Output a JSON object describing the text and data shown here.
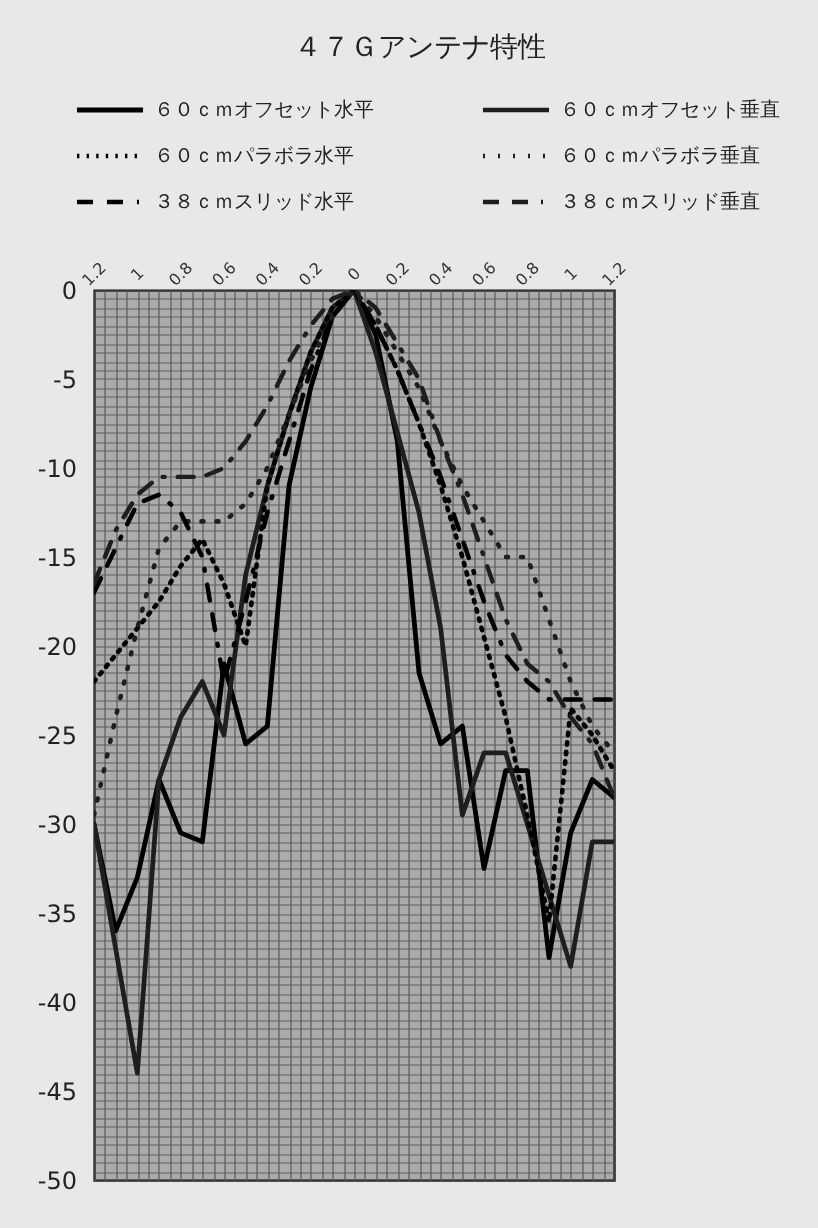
{
  "chart_data": {
    "type": "line",
    "title": "４７Ｇアンテナ特性",
    "x": [
      -1.2,
      -1.1,
      -1,
      -0.9,
      -0.8,
      -0.7,
      -0.6,
      -0.5,
      -0.4,
      -0.3,
      -0.2,
      -0.1,
      0,
      0.1,
      0.2,
      0.3,
      0.4,
      0.5,
      0.6,
      0.7,
      0.8,
      0.9,
      1,
      1.1,
      1.2
    ],
    "series": [
      {
        "name": "６０ｃｍオフセット水平",
        "color": "#000000",
        "line_style": "solid",
        "values": [
          -30,
          -36,
          -33,
          -27.5,
          -30.5,
          -31,
          -21,
          -25.5,
          -24.5,
          -11,
          -5.5,
          -1.5,
          0,
          -2.5,
          -8.5,
          -21.5,
          -25.5,
          -24.5,
          -32.5,
          -27,
          -27,
          -37.5,
          -30.5,
          -27.5,
          -28.5
        ]
      },
      {
        "name": "６０ｃｍオフセット垂直",
        "color": "#1e1e1e",
        "line_style": "solid",
        "values": [
          -30,
          -37,
          -44,
          -27.5,
          -24,
          -22,
          -25,
          -16,
          -11,
          -7,
          -3.5,
          -1,
          0,
          -3.5,
          -8,
          -12.5,
          -19,
          -29.5,
          -26,
          -26,
          -30,
          -34,
          -38,
          -31,
          -31
        ]
      },
      {
        "name": "６０ｃｍパラボラ水平",
        "color": "#000000",
        "line_style": "dotted",
        "values": [
          -22,
          -20.5,
          -19,
          -17.5,
          -15.5,
          -14,
          -16.5,
          -20,
          -11,
          -7,
          -3.5,
          -1,
          0,
          -2,
          -4.5,
          -7.5,
          -11,
          -15,
          -19.5,
          -24,
          -29.5,
          -35.5,
          -23.5,
          -25,
          -27
        ]
      },
      {
        "name": "６０ｃｍパラボラ垂直",
        "color": "#1e1e1e",
        "line_style": "dotted",
        "values": [
          -29.5,
          -24,
          -19,
          -14.5,
          -13,
          -13,
          -13,
          -12,
          -10,
          -7,
          -4,
          -1.5,
          0,
          -1.5,
          -3.5,
          -5.5,
          -8.5,
          -11,
          -13,
          -15,
          -15,
          -18.5,
          -22,
          -24.5,
          -26
        ]
      },
      {
        "name": "３８ｃｍスリッド水平",
        "color": "#000000",
        "line_style": "dashed",
        "values": [
          -17,
          -14.5,
          -12,
          -11.5,
          -12.5,
          -15,
          -22,
          -17.5,
          -12.5,
          -8.5,
          -4.5,
          -1.5,
          0,
          -2,
          -4.5,
          -7.5,
          -10.5,
          -14,
          -17.5,
          -20.5,
          -22,
          -23,
          -23,
          -23,
          -23
        ]
      },
      {
        "name": "３８ｃｍスリッド垂直",
        "color": "#1e1e1e",
        "line_style": "dashed",
        "values": [
          -16.5,
          -13.5,
          -11.5,
          -10.5,
          -10.5,
          -10.5,
          -10,
          -8.5,
          -6.5,
          -4,
          -2,
          -0.5,
          0,
          -1,
          -3,
          -5,
          -8.5,
          -11.5,
          -15,
          -18.5,
          -21,
          -22,
          -24,
          -25.5,
          -28.5
        ]
      }
    ],
    "xlim": [
      -1.2,
      1.2
    ],
    "xticks": [
      {
        "value": -1.2,
        "label": "1.2"
      },
      {
        "value": -1.15,
        "label": null
      },
      {
        "value": -1.1,
        "label": null
      },
      {
        "value": -1.05,
        "label": null
      },
      {
        "value": -1,
        "label": "1"
      },
      {
        "value": -0.95,
        "label": null
      },
      {
        "value": -0.9,
        "label": null
      },
      {
        "value": -0.85,
        "label": null
      },
      {
        "value": -0.8,
        "label": "0.8"
      },
      {
        "value": -0.75,
        "label": null
      },
      {
        "value": -0.7,
        "label": null
      },
      {
        "value": -0.65,
        "label": null
      },
      {
        "value": -0.6,
        "label": "0.6"
      },
      {
        "value": -0.55,
        "label": null
      },
      {
        "value": -0.5,
        "label": null
      },
      {
        "value": -0.45,
        "label": null
      },
      {
        "value": -0.4,
        "label": "0.4"
      },
      {
        "value": -0.35,
        "label": null
      },
      {
        "value": -0.3,
        "label": null
      },
      {
        "value": -0.25,
        "label": null
      },
      {
        "value": -0.2,
        "label": "0.2"
      },
      {
        "value": -0.15,
        "label": null
      },
      {
        "value": -0.1,
        "label": null
      },
      {
        "value": -0.05,
        "label": null
      },
      0,
      {
        "value": 0.05,
        "label": null
      },
      {
        "value": 0.1,
        "label": null
      },
      {
        "value": 0.15,
        "label": null
      },
      0.2,
      {
        "value": 0.25,
        "label": null
      },
      {
        "value": 0.3,
        "label": null
      },
      {
        "value": 0.35,
        "label": null
      },
      0.4,
      {
        "value": 0.45,
        "label": null
      },
      {
        "value": 0.5,
        "label": null
      },
      {
        "value": 0.55,
        "label": null
      },
      0.6,
      {
        "value": 0.65,
        "label": null
      },
      {
        "value": 0.7,
        "label": null
      },
      {
        "value": 0.75,
        "label": null
      },
      0.8,
      {
        "value": 0.85,
        "label": null
      },
      {
        "value": 0.9,
        "label": null
      },
      {
        "value": 0.95,
        "label": null
      },
      1,
      {
        "value": 1.05,
        "label": null
      },
      {
        "value": 1.1,
        "label": null
      },
      {
        "value": 1.15,
        "label": null
      },
      1.2
    ],
    "ylim": [
      -50,
      0
    ],
    "yticks": [
      0,
      {
        "value": -0.5,
        "label": null
      },
      {
        "value": -1,
        "label": null
      },
      {
        "value": -1.5,
        "label": null
      },
      {
        "value": -2,
        "label": null
      },
      {
        "value": -2.5,
        "label": null
      },
      {
        "value": -3,
        "label": null
      },
      {
        "value": -3.5,
        "label": null
      },
      {
        "value": -4,
        "label": null
      },
      {
        "value": -4.5,
        "label": null
      },
      -5,
      {
        "value": -5.5,
        "label": null
      },
      {
        "value": -6,
        "label": null
      },
      {
        "value": -6.5,
        "label": null
      },
      {
        "value": -7,
        "label": null
      },
      {
        "value": -7.5,
        "label": null
      },
      {
        "value": -8,
        "label": null
      },
      {
        "value": -8.5,
        "label": null
      },
      {
        "value": -9,
        "label": null
      },
      {
        "value": -9.5,
        "label": null
      },
      -10,
      {
        "value": -10.5,
        "label": null
      },
      {
        "value": -11,
        "label": null
      },
      {
        "value": -11.5,
        "label": null
      },
      {
        "value": -12,
        "label": null
      },
      {
        "value": -12.5,
        "label": null
      },
      {
        "value": -13,
        "label": null
      },
      {
        "value": -13.5,
        "label": null
      },
      {
        "value": -14,
        "label": null
      },
      {
        "value": -14.5,
        "label": null
      },
      -15,
      {
        "value": -15.5,
        "label": null
      },
      {
        "value": -16,
        "label": null
      },
      {
        "value": -16.5,
        "label": null
      },
      {
        "value": -17,
        "label": null
      },
      {
        "value": -17.5,
        "label": null
      },
      {
        "value": -18,
        "label": null
      },
      {
        "value": -18.5,
        "label": null
      },
      {
        "value": -19,
        "label": null
      },
      {
        "value": -19.5,
        "label": null
      },
      -20,
      {
        "value": -20.5,
        "label": null
      },
      {
        "value": -21,
        "label": null
      },
      {
        "value": -21.5,
        "label": null
      },
      {
        "value": -22,
        "label": null
      },
      {
        "value": -22.5,
        "label": null
      },
      {
        "value": -23,
        "label": null
      },
      {
        "value": -23.5,
        "label": null
      },
      {
        "value": -24,
        "label": null
      },
      {
        "value": -24.5,
        "label": null
      },
      -25,
      {
        "value": -25.5,
        "label": null
      },
      {
        "value": -26,
        "label": null
      },
      {
        "value": -26.5,
        "label": null
      },
      {
        "value": -27,
        "label": null
      },
      {
        "value": -27.5,
        "label": null
      },
      {
        "value": -28,
        "label": null
      },
      {
        "value": -28.5,
        "label": null
      },
      {
        "value": -29,
        "label": null
      },
      {
        "value": -29.5,
        "label": null
      },
      -30,
      {
        "value": -30.5,
        "label": null
      },
      {
        "value": -31,
        "label": null
      },
      {
        "value": -31.5,
        "label": null
      },
      {
        "value": -32,
        "label": null
      },
      {
        "value": -32.5,
        "label": null
      },
      {
        "value": -33,
        "label": null
      },
      {
        "value": -33.5,
        "label": null
      },
      {
        "value": -34,
        "label": null
      },
      {
        "value": -34.5,
        "label": null
      },
      -35,
      {
        "value": -35.5,
        "label": null
      },
      {
        "value": -36,
        "label": null
      },
      {
        "value": -36.5,
        "label": null
      },
      {
        "value": -37,
        "label": null
      },
      {
        "value": -37.5,
        "label": null
      },
      {
        "value": -38,
        "label": null
      },
      {
        "value": -38.5,
        "label": null
      },
      {
        "value": -39,
        "label": null
      },
      {
        "value": -39.5,
        "label": null
      },
      -40,
      {
        "value": -40.5,
        "label": null
      },
      {
        "value": -41,
        "label": null
      },
      {
        "value": -41.5,
        "label": null
      },
      {
        "value": -42,
        "label": null
      },
      {
        "value": -42.5,
        "label": null
      },
      {
        "value": -43,
        "label": null
      },
      {
        "value": -43.5,
        "label": null
      },
      {
        "value": -44,
        "label": null
      },
      {
        "value": -44.5,
        "label": null
      },
      -45,
      {
        "value": -45.5,
        "label": null
      },
      {
        "value": -46,
        "label": null
      },
      {
        "value": -46.5,
        "label": null
      },
      {
        "value": -47,
        "label": null
      },
      {
        "value": -47.5,
        "label": null
      },
      {
        "value": -48,
        "label": null
      },
      {
        "value": -48.5,
        "label": null
      },
      {
        "value": -49,
        "label": null
      },
      {
        "value": -49.5,
        "label": null
      },
      -50
    ],
    "grid": true,
    "legend": "top"
  }
}
